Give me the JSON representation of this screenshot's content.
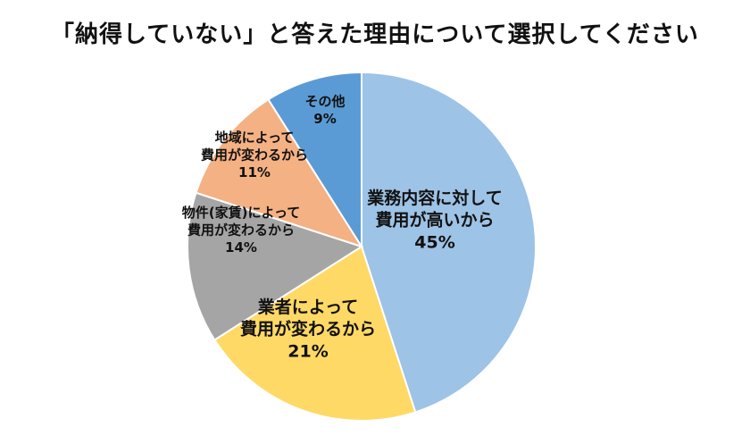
{
  "chart_data": {
    "type": "pie",
    "title": "「納得していない」と答えた理由について選択してください",
    "slices": [
      {
        "label_lines": [
          "業務内容に対して",
          "費用が高いから"
        ],
        "value": 45,
        "value_label": "45%",
        "color": "#9DC3E6"
      },
      {
        "label_lines": [
          "業者によって",
          "費用が変わるから"
        ],
        "value": 21,
        "value_label": "21%",
        "color": "#FFD966"
      },
      {
        "label_lines": [
          "物件(家賃)によって",
          "費用が変わるから"
        ],
        "value": 14,
        "value_label": "14%",
        "color": "#A5A5A5"
      },
      {
        "label_lines": [
          "地域によって",
          "費用が変わるから"
        ],
        "value": 11,
        "value_label": "11%",
        "color": "#F4B183"
      },
      {
        "label_lines": [
          "その他"
        ],
        "value": 9,
        "value_label": "9%",
        "color": "#5B9BD5"
      }
    ],
    "start": "12 o'clock",
    "direction": "clockwise"
  }
}
